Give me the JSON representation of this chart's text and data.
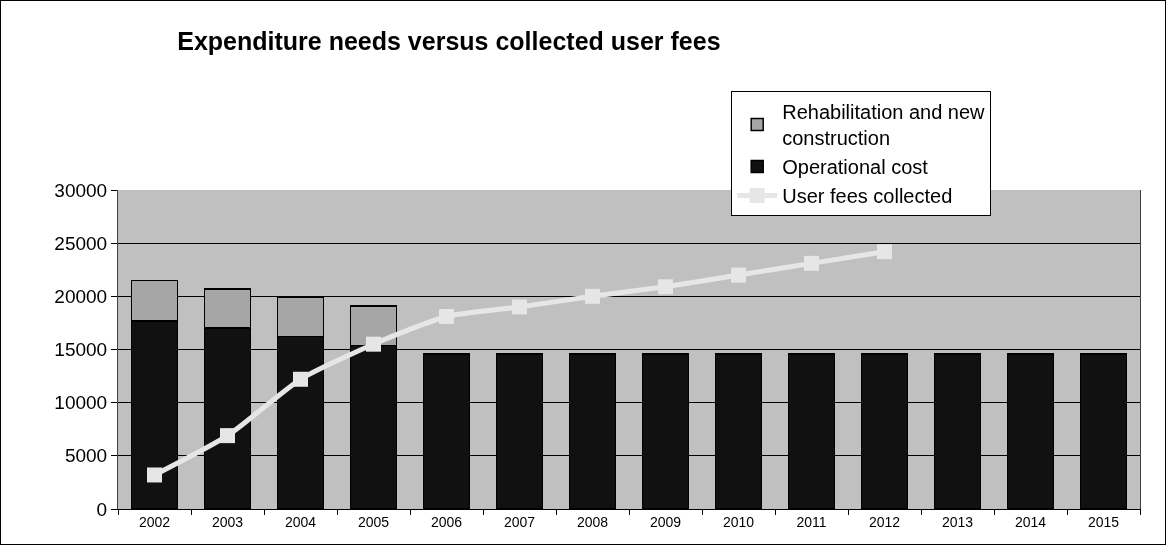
{
  "chart_data": {
    "type": "bar",
    "title": "Expenditure needs versus collected user fees",
    "categories": [
      "2002",
      "2003",
      "2004",
      "2005",
      "2006",
      "2007",
      "2008",
      "2009",
      "2010",
      "2011",
      "2012",
      "2013",
      "2014",
      "2015"
    ],
    "stacked": true,
    "series": [
      {
        "name": "Operational cost",
        "color": "#111111",
        "values": [
          17700,
          17000,
          16200,
          15400,
          14600,
          14600,
          14600,
          14600,
          14600,
          14600,
          14600,
          14600,
          14600,
          14600
        ]
      },
      {
        "name": "Rehabilitation and new construction",
        "color": "#a6a6a6",
        "values": [
          3800,
          3700,
          3700,
          3700,
          null,
          null,
          null,
          null,
          null,
          null,
          null,
          null,
          null,
          null
        ]
      },
      {
        "name": "User fees collected",
        "type": "line",
        "color": "#e6e6e6",
        "values": [
          3200,
          6900,
          12200,
          15500,
          18100,
          19000,
          20000,
          20900,
          22000,
          23100,
          24200,
          null,
          null,
          null
        ]
      }
    ],
    "ylim": [
      0,
      30000
    ],
    "yticks": [
      0,
      5000,
      10000,
      15000,
      20000,
      25000,
      30000
    ],
    "grid": "y",
    "legend": "top right",
    "marker": "square",
    "line_style": "solid"
  }
}
